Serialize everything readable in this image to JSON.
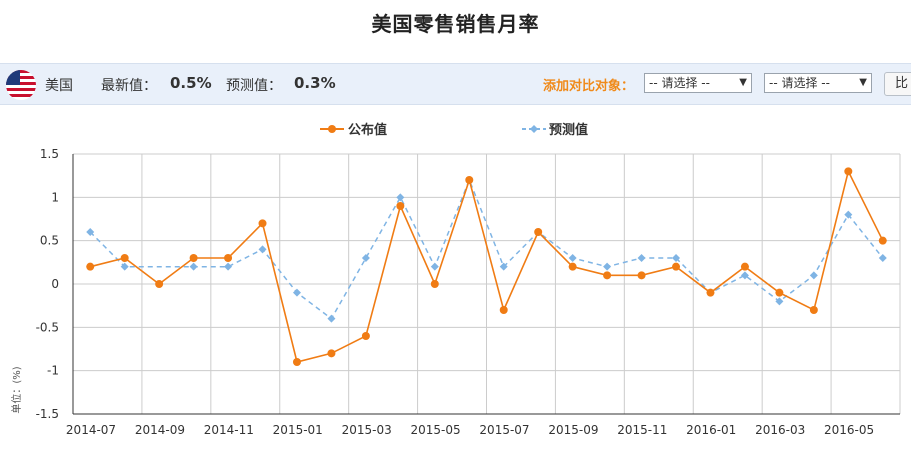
{
  "page": {
    "title": "美国零售销售月率"
  },
  "toolbar": {
    "country": "美国",
    "latest_label": "最新值：",
    "latest_value": "0.5%",
    "forecast_label": "预测值：",
    "forecast_value": "0.3%",
    "compare_label": "添加对比对象：",
    "select1_value": "-- 请选择 --",
    "select2_value": "-- 请选择 --",
    "compare_button": "比"
  },
  "colors": {
    "actual": "#f07c14",
    "forecast": "#7fb4e4",
    "grid": "#cccccc",
    "axis": "#333333"
  },
  "chart_data": {
    "type": "line",
    "ylabel": "单位：(%)",
    "ylim": [
      -1.5,
      1.5
    ],
    "yticks": [
      "1.5",
      "1",
      "0.5",
      "0",
      "-0.5",
      "-1",
      "-1.5"
    ],
    "ytick_values": [
      1.5,
      1,
      0.5,
      0,
      -0.5,
      -1,
      -1.5
    ],
    "xtick_labels": [
      "2014-07",
      "2014-09",
      "2014-11",
      "2015-01",
      "2015-03",
      "2015-05",
      "2015-07",
      "2015-09",
      "2015-11",
      "2016-01",
      "2016-03",
      "2016-05"
    ],
    "legend_position": "top-center",
    "grid": true,
    "series": [
      {
        "name": "公布值",
        "color": "#f07c14",
        "style": "solid",
        "marker": "circle",
        "values": [
          0.2,
          0.3,
          0.0,
          0.3,
          0.3,
          0.7,
          -0.9,
          -0.8,
          -0.6,
          0.9,
          0.0,
          1.2,
          -0.3,
          0.6,
          0.2,
          0.1,
          0.1,
          0.2,
          -0.1,
          0.2,
          -0.1,
          -0.3,
          1.3,
          0.5
        ]
      },
      {
        "name": "预测值",
        "color": "#7fb4e4",
        "style": "dashed",
        "marker": "diamond",
        "values": [
          0.6,
          0.2,
          null,
          0.2,
          0.2,
          0.4,
          -0.1,
          -0.4,
          0.3,
          1.0,
          0.2,
          1.2,
          0.2,
          0.6,
          0.3,
          0.2,
          0.3,
          0.3,
          -0.1,
          0.1,
          -0.2,
          0.1,
          0.8,
          0.3
        ]
      }
    ]
  }
}
